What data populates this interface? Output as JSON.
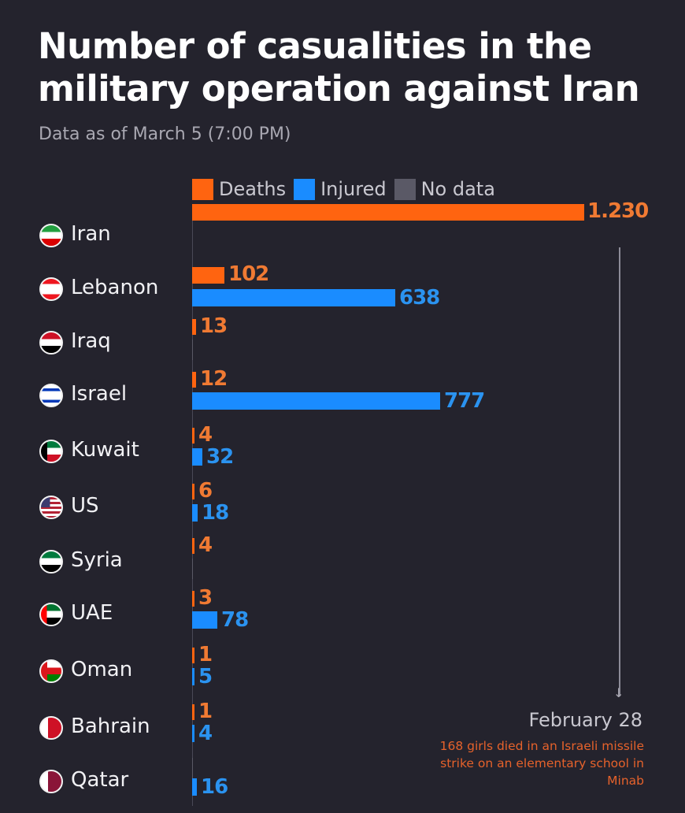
{
  "header": {
    "title": "Number of casualities in the military operation against Iran",
    "subtitle": "Data as of March 5 (7:00 PM)"
  },
  "legend": [
    {
      "label": "Deaths",
      "color": "#ff6410"
    },
    {
      "label": "Injured",
      "color": "#1a8cff"
    },
    {
      "label": "No data",
      "color": "#5a5966"
    }
  ],
  "colors": {
    "background": "#24232d",
    "deaths": "#ff6410",
    "deaths_label": "#f07a33",
    "injured": "#1a8cff",
    "injured_label": "#2b93f0",
    "no_data": "#5a5966"
  },
  "annotation": {
    "date": "February 28",
    "text": "168 girls died in an Israeli missile strike on an elementary school in Minab"
  },
  "chart_data": {
    "type": "bar",
    "orientation": "horizontal",
    "title": "Number of casualities in the military operation against Iran",
    "subtitle": "Data as of March 5 (7:00 PM)",
    "xlabel": "",
    "ylabel": "",
    "grid": false,
    "legend_position": "top",
    "categories": [
      "Iran",
      "Lebanon",
      "Iraq",
      "Israel",
      "Kuwait",
      "US",
      "Syria",
      "UAE",
      "Oman",
      "Bahrain",
      "Qatar"
    ],
    "series": [
      {
        "name": "Deaths",
        "values": [
          1230,
          102,
          13,
          12,
          4,
          6,
          4,
          3,
          1,
          1,
          null
        ]
      },
      {
        "name": "Injured",
        "values": [
          null,
          638,
          null,
          777,
          32,
          18,
          null,
          78,
          5,
          4,
          16
        ]
      }
    ],
    "value_labels": {
      "Deaths": [
        "1.230",
        "102",
        "13",
        "12",
        "4",
        "6",
        "4",
        "3",
        "1",
        "1",
        ""
      ],
      "Injured": [
        "",
        "638",
        "",
        "777",
        "32",
        "18",
        "",
        "78",
        "5",
        "4",
        "16"
      ]
    },
    "annotations": [
      {
        "target": "Iran",
        "label": "February 28",
        "text": "168 girls died in an Israeli missile strike on an elementary school in Minab"
      }
    ]
  }
}
